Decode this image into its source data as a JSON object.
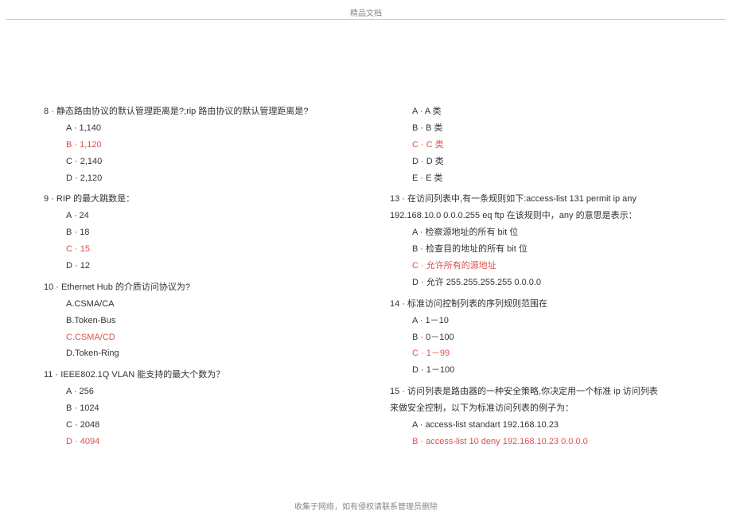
{
  "header": "精品文档",
  "footer": "收集于网络，如有侵权请联系管理员删除",
  "left": {
    "q8": {
      "text": "8 · 静态路由协议的默认管理距离是?;rip 路由协议的默认管理距离是?",
      "a": "A · 1,140",
      "b": "B · 1,120",
      "c": "C · 2,140",
      "d": "D · 2,120"
    },
    "q9": {
      "text": "9 · RIP 的最大跳数是：",
      "a": "A · 24",
      "b": "B · 18",
      "c": "C · 15",
      "d": "D · 12"
    },
    "q10": {
      "text": "10 · Ethernet Hub 的介质访问协议为?",
      "a": "A.CSMA/CA",
      "b": "B.Token-Bus",
      "c": "C.CSMA/CD",
      "d": "D.Token-Ring"
    },
    "q11": {
      "text": "11 · IEEE802.1Q VLAN 能支持的最大个数为？",
      "a": "A · 256",
      "b": "B · 1024",
      "c": "C · 2048",
      "d": "D · 4094"
    }
  },
  "right": {
    "q12opts": {
      "a": "A · A 类",
      "b": "B · B 类",
      "c": "C · C 类",
      "d": "D · D 类",
      "e": "E · E 类"
    },
    "q13": {
      "text1": "13 · 在访问列表中,有一条规则如下:access-list        131 permit ip any",
      "text2": "192.168.10.0 0.0.0.255 eq ftp 在该规则中，any 的意思是表示：",
      "a": "A · 检察源地址的所有 bit 位",
      "b": "B · 检查目的地址的所有 bit 位",
      "c": "C · 允许所有的源地址",
      "d": "D · 允许 255.255.255.255 0.0.0.0"
    },
    "q14": {
      "text": "14 · 标准访问控制列表的序列规则范围在",
      "a": "A · 1－10",
      "b": "B · 0－100",
      "c": "C · 1－99",
      "d": "D · 1－100"
    },
    "q15": {
      "text1": "15 · 访问列表是路由器的一种安全策略,你决定用一个标准 ip 访问列表",
      "text2": "来做安全控制，以下为标准访问列表的例子为：",
      "a": "A · access-list standart 192.168.10.23",
      "b": "B · access-list 10 deny 192.168.10.23 0.0.0.0"
    }
  }
}
